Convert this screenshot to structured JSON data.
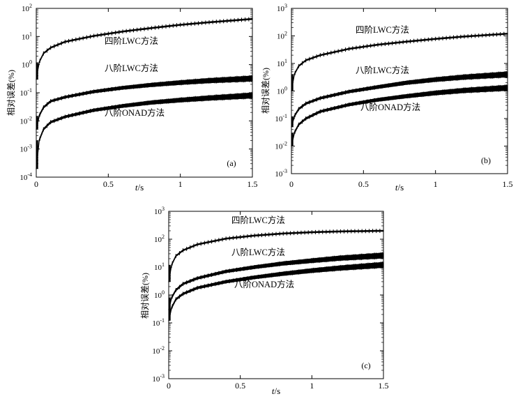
{
  "chart_data": [
    {
      "type": "line",
      "panel_label": "(a)",
      "xlabel": "t/s",
      "ylabel": "相对误差(%)",
      "xlim": [
        0,
        1.5
      ],
      "ylim_exp": [
        -4,
        2
      ],
      "log_y": true,
      "x_ticks": [
        "0",
        "0.5",
        "1",
        "1.5"
      ],
      "y_ticks": [
        "10⁻⁴",
        "10⁻³",
        "10⁻²",
        "10⁻¹",
        "10⁰",
        "10¹",
        "10²"
      ],
      "series": [
        {
          "name": "四阶LWC方法",
          "x": [
            0,
            0.02,
            0.05,
            0.1,
            0.2,
            0.4,
            0.6,
            0.8,
            1.0,
            1.2,
            1.5
          ],
          "y": [
            0.3,
            1.2,
            2.5,
            4.0,
            6.5,
            10.5,
            15,
            20,
            26,
            32,
            42
          ],
          "band": false
        },
        {
          "name": "八阶LWC方法",
          "x": [
            0,
            0.02,
            0.05,
            0.1,
            0.2,
            0.4,
            0.6,
            0.8,
            1.0,
            1.2,
            1.5
          ],
          "y": [
            0.005,
            0.015,
            0.03,
            0.05,
            0.07,
            0.11,
            0.15,
            0.19,
            0.23,
            0.27,
            0.32
          ],
          "band": true
        },
        {
          "name": "八阶ONAD方法",
          "x": [
            0,
            0.02,
            0.05,
            0.1,
            0.2,
            0.4,
            0.6,
            0.8,
            1.0,
            1.2,
            1.5
          ],
          "y": [
            0.0002,
            0.002,
            0.005,
            0.009,
            0.014,
            0.024,
            0.034,
            0.045,
            0.055,
            0.065,
            0.08
          ],
          "band": true
        }
      ]
    },
    {
      "type": "line",
      "panel_label": "(b)",
      "xlabel": "t/s",
      "ylabel": "相对误差(%)",
      "xlim": [
        0,
        1.5
      ],
      "ylim_exp": [
        -3,
        3
      ],
      "log_y": true,
      "x_ticks": [
        "0",
        "0.5",
        "1",
        "1.5"
      ],
      "y_ticks": [
        "10⁻³",
        "10⁻²",
        "10⁻¹",
        "10⁰",
        "10¹",
        "10²",
        "10³"
      ],
      "series": [
        {
          "name": "四阶LWC方法",
          "x": [
            0,
            0.02,
            0.05,
            0.1,
            0.2,
            0.4,
            0.6,
            0.8,
            1.0,
            1.2,
            1.5
          ],
          "y": [
            1.0,
            4.0,
            8.0,
            13,
            20,
            34,
            48,
            62,
            78,
            95,
            120
          ],
          "band": false
        },
        {
          "name": "八阶LWC方法",
          "x": [
            0,
            0.02,
            0.05,
            0.1,
            0.2,
            0.4,
            0.6,
            0.8,
            1.0,
            1.2,
            1.5
          ],
          "y": [
            0.05,
            0.12,
            0.22,
            0.35,
            0.55,
            0.95,
            1.4,
            2.0,
            2.6,
            3.2,
            4.0
          ],
          "band": true
        },
        {
          "name": "八阶ONAD方法",
          "x": [
            0,
            0.02,
            0.05,
            0.1,
            0.2,
            0.4,
            0.6,
            0.8,
            1.0,
            1.2,
            1.5
          ],
          "y": [
            0.01,
            0.03,
            0.06,
            0.1,
            0.18,
            0.32,
            0.48,
            0.65,
            0.85,
            1.05,
            1.3
          ],
          "band": true
        }
      ]
    },
    {
      "type": "line",
      "panel_label": "(c)",
      "xlabel": "t/s",
      "ylabel": "相对误差(%)",
      "xlim": [
        0,
        1.5
      ],
      "ylim_exp": [
        -3,
        3
      ],
      "log_y": true,
      "x_ticks": [
        "0",
        "0.5",
        "1",
        "1.5"
      ],
      "y_ticks": [
        "10⁻³",
        "10⁻²",
        "10⁻¹",
        "10⁰",
        "10¹",
        "10²",
        "10³"
      ],
      "series": [
        {
          "name": "四阶LWC方法",
          "x": [
            0,
            0.02,
            0.05,
            0.1,
            0.2,
            0.4,
            0.6,
            0.8,
            1.0,
            1.2,
            1.5
          ],
          "y": [
            3,
            12,
            25,
            40,
            65,
            105,
            135,
            160,
            178,
            190,
            200
          ],
          "band": false
        },
        {
          "name": "八阶LWC方法",
          "x": [
            0,
            0.02,
            0.05,
            0.1,
            0.2,
            0.4,
            0.6,
            0.8,
            1.0,
            1.2,
            1.5
          ],
          "y": [
            0.3,
            0.8,
            1.5,
            2.5,
            4,
            7,
            10,
            13.5,
            17,
            21,
            26
          ],
          "band": true
        },
        {
          "name": "八阶ONAD方法",
          "x": [
            0,
            0.02,
            0.05,
            0.1,
            0.2,
            0.4,
            0.6,
            0.8,
            1.0,
            1.2,
            1.5
          ],
          "y": [
            0.12,
            0.35,
            0.7,
            1.1,
            1.8,
            3.0,
            4.3,
            5.8,
            7.5,
            9.3,
            12
          ],
          "band": true
        }
      ]
    }
  ]
}
